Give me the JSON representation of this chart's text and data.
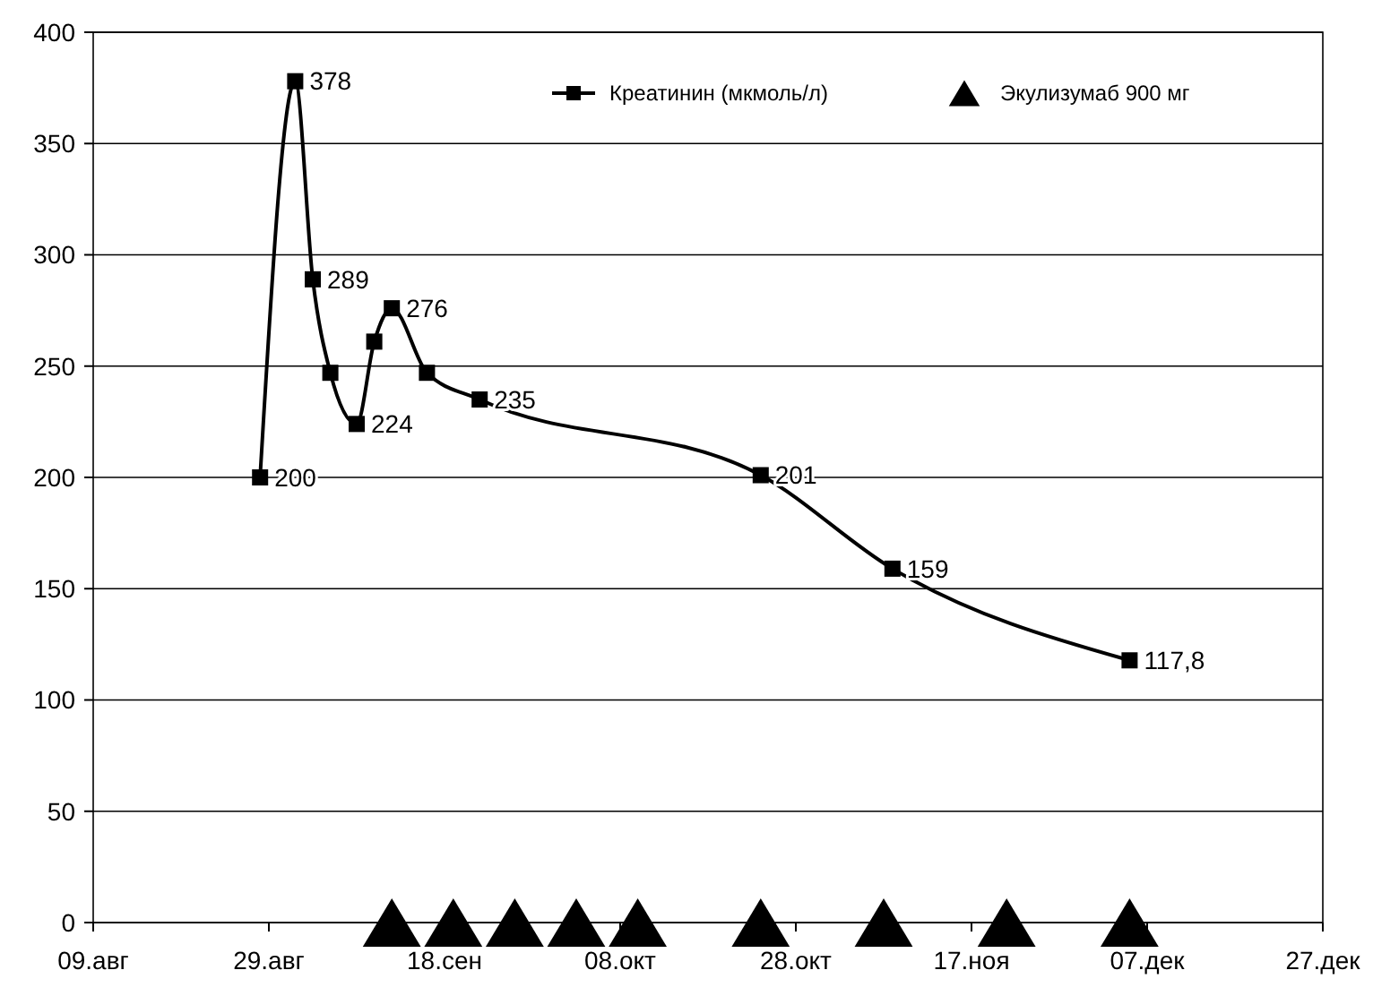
{
  "chart_data": {
    "type": "line",
    "xlim": [
      "--08-09",
      "--12-27"
    ],
    "xticks": [
      {
        "value": "--08-09",
        "label": "09.авг"
      },
      {
        "value": "--08-29",
        "label": "29.авг"
      },
      {
        "value": "--09-18",
        "label": "18.сен"
      },
      {
        "value": "--10-08",
        "label": "08.окт"
      },
      {
        "value": "--10-28",
        "label": "28.окт"
      },
      {
        "value": "--11-17",
        "label": "17.ноя"
      },
      {
        "value": "--12-07",
        "label": "07.дек"
      },
      {
        "value": "--12-27",
        "label": "27.дек"
      }
    ],
    "ylim": [
      0,
      400
    ],
    "yticks": [
      0,
      50,
      100,
      150,
      200,
      250,
      300,
      350,
      400
    ],
    "grid": "y",
    "legend": "top right",
    "series": [
      {
        "name": "Креатинин (мкмоль/л)",
        "type": "line",
        "marker": "square",
        "color": "#000000",
        "x": [
          "--08-28",
          "--09-01",
          "--09-03",
          "--09-05",
          "--09-08",
          "--09-10",
          "--09-12",
          "--09-16",
          "--09-22",
          "--10-24",
          "--11-08",
          "--12-05"
        ],
        "values": [
          200,
          378,
          289,
          247,
          224,
          261,
          276,
          247,
          235,
          201,
          159,
          117.8
        ],
        "value_labels": [
          "200",
          "378",
          "289",
          null,
          "224",
          null,
          "276",
          null,
          "235",
          "201",
          "159",
          "117,8"
        ]
      },
      {
        "name": "Экулизумаб 900 мг",
        "type": "scatter",
        "marker": "triangle",
        "color": "#000000",
        "x": [
          "--09-12",
          "--09-19",
          "--09-26",
          "--10-03",
          "--10-10",
          "--10-24",
          "--11-07",
          "--11-21",
          "--12-05"
        ],
        "values": [
          0,
          0,
          0,
          0,
          0,
          0,
          0,
          0,
          0
        ]
      }
    ]
  }
}
